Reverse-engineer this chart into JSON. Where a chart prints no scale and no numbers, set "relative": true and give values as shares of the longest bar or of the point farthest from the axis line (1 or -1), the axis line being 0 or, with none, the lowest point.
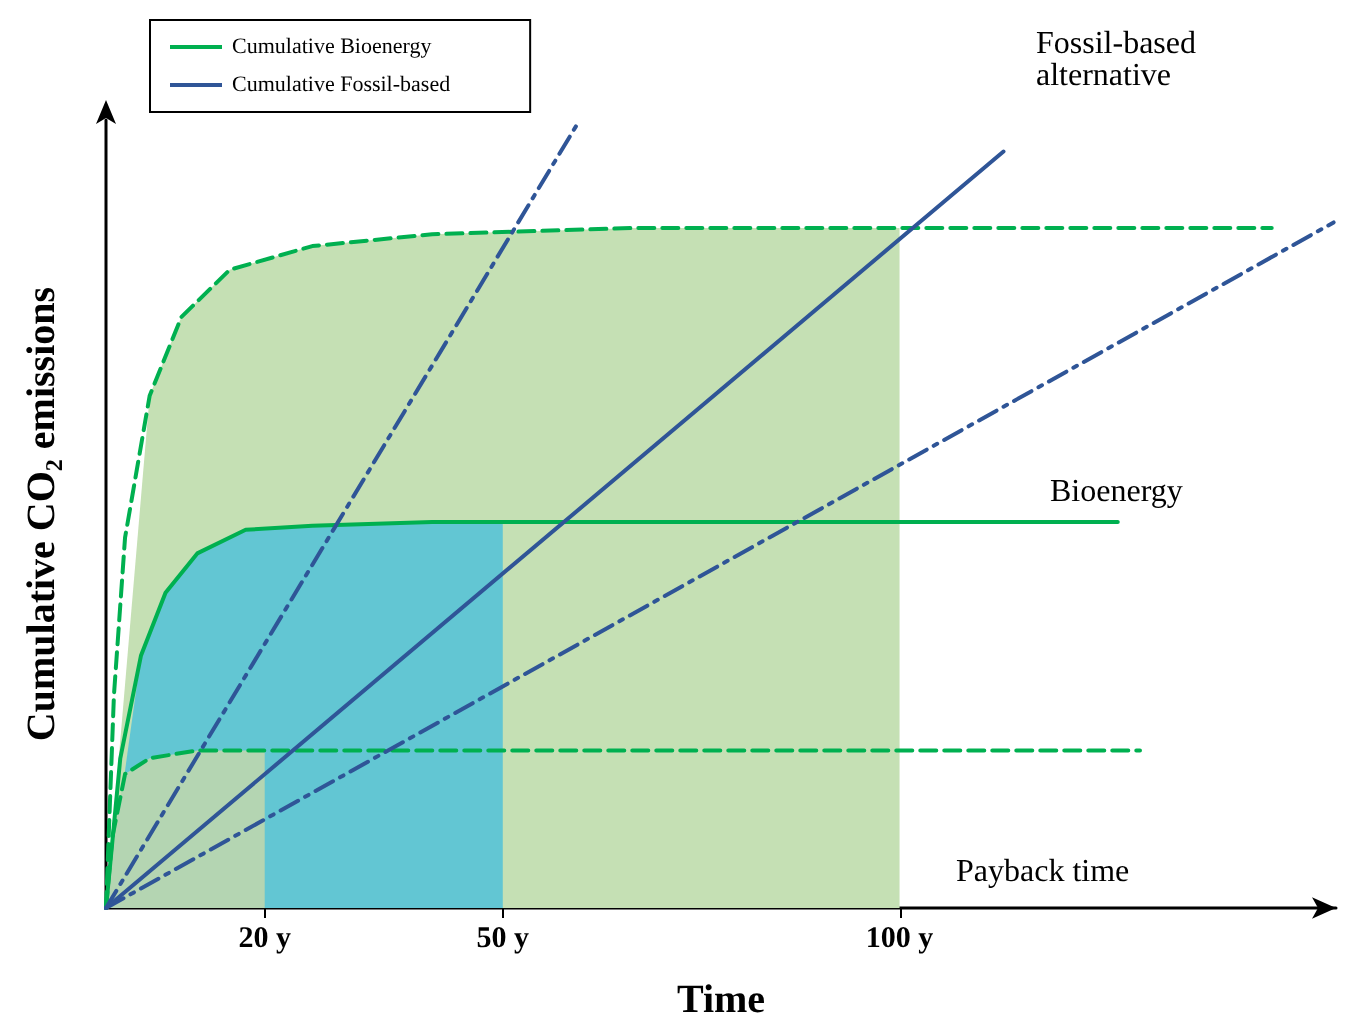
{
  "chart_data": {
    "type": "line",
    "relative": true,
    "xlabel": "Time",
    "ylabel": "Cumulative CO₂ emissions",
    "xlim": [
      0,
      155
    ],
    "xticks": [
      {
        "value": 20,
        "label": "20 y"
      },
      {
        "value": 50,
        "label": "50 y"
      },
      {
        "value": 100,
        "label": "100 y"
      }
    ],
    "tick_labels": "x",
    "grid": false,
    "legend": "top left",
    "marker": "none",
    "annotations": [
      "Fossil-based alternative",
      "Bioenergy",
      "Payback time"
    ],
    "series": [
      {
        "type": "area",
        "color": "#c5e0b4",
        "x": [
          0,
          5.5,
          9.5,
          15.6,
          26,
          41.1,
          66.7,
          100
        ],
        "values": [
          0,
          0.65,
          0.75,
          0.81,
          0.84,
          0.855,
          0.863,
          0.863
        ]
      },
      {
        "type": "area",
        "color": "#62c6d3",
        "x": [
          0,
          4.4,
          7.5,
          11.5,
          17.6,
          26,
          41.1,
          50
        ],
        "values": [
          0,
          0.32,
          0.4,
          0.45,
          0.48,
          0.485,
          0.49,
          0.49
        ]
      },
      {
        "type": "area",
        "color": "#b4d5b2",
        "x": [
          0,
          0.8,
          2.4,
          5.5,
          11.5,
          20
        ],
        "values": [
          0,
          0.09,
          0.17,
          0.19,
          0.2,
          0.2
        ]
      },
      {
        "color": "#00b050",
        "line_style": "dashed",
        "x": [
          0,
          1,
          2.4,
          5.5,
          9.5,
          15.6,
          26,
          41.1,
          66.7,
          100,
          146.9
        ],
        "values": [
          0,
          0.27,
          0.47,
          0.65,
          0.75,
          0.81,
          0.84,
          0.855,
          0.863,
          0.863,
          0.863
        ]
      },
      {
        "color": "#00b050",
        "line_style": "dashed",
        "x": [
          0,
          0.8,
          2.4,
          5.5,
          11.5,
          130.3
        ],
        "values": [
          0,
          0.09,
          0.17,
          0.19,
          0.2,
          0.2
        ]
      },
      {
        "name": "Cumulative Bioenergy",
        "color": "#00b050",
        "line_style": "solid",
        "x": [
          0,
          1.8,
          4.4,
          7.5,
          11.5,
          17.6,
          26,
          41.1,
          50,
          127.5
        ],
        "values": [
          0,
          0.19,
          0.32,
          0.4,
          0.45,
          0.48,
          0.485,
          0.49,
          0.49,
          0.49
        ]
      },
      {
        "color": "#2f5597",
        "line_style": "dashdot",
        "x": [
          0,
          59.7
        ],
        "values": [
          0,
          1
        ]
      },
      {
        "color": "#2f5597",
        "line_style": "dashdot",
        "x": [
          0,
          154.7
        ],
        "values": [
          0,
          0.87
        ]
      },
      {
        "name": "Cumulative Fossil-based",
        "color": "#2f5597",
        "line_style": "solid",
        "x": [
          0,
          113.1
        ],
        "values": [
          0,
          0.96
        ]
      }
    ]
  }
}
